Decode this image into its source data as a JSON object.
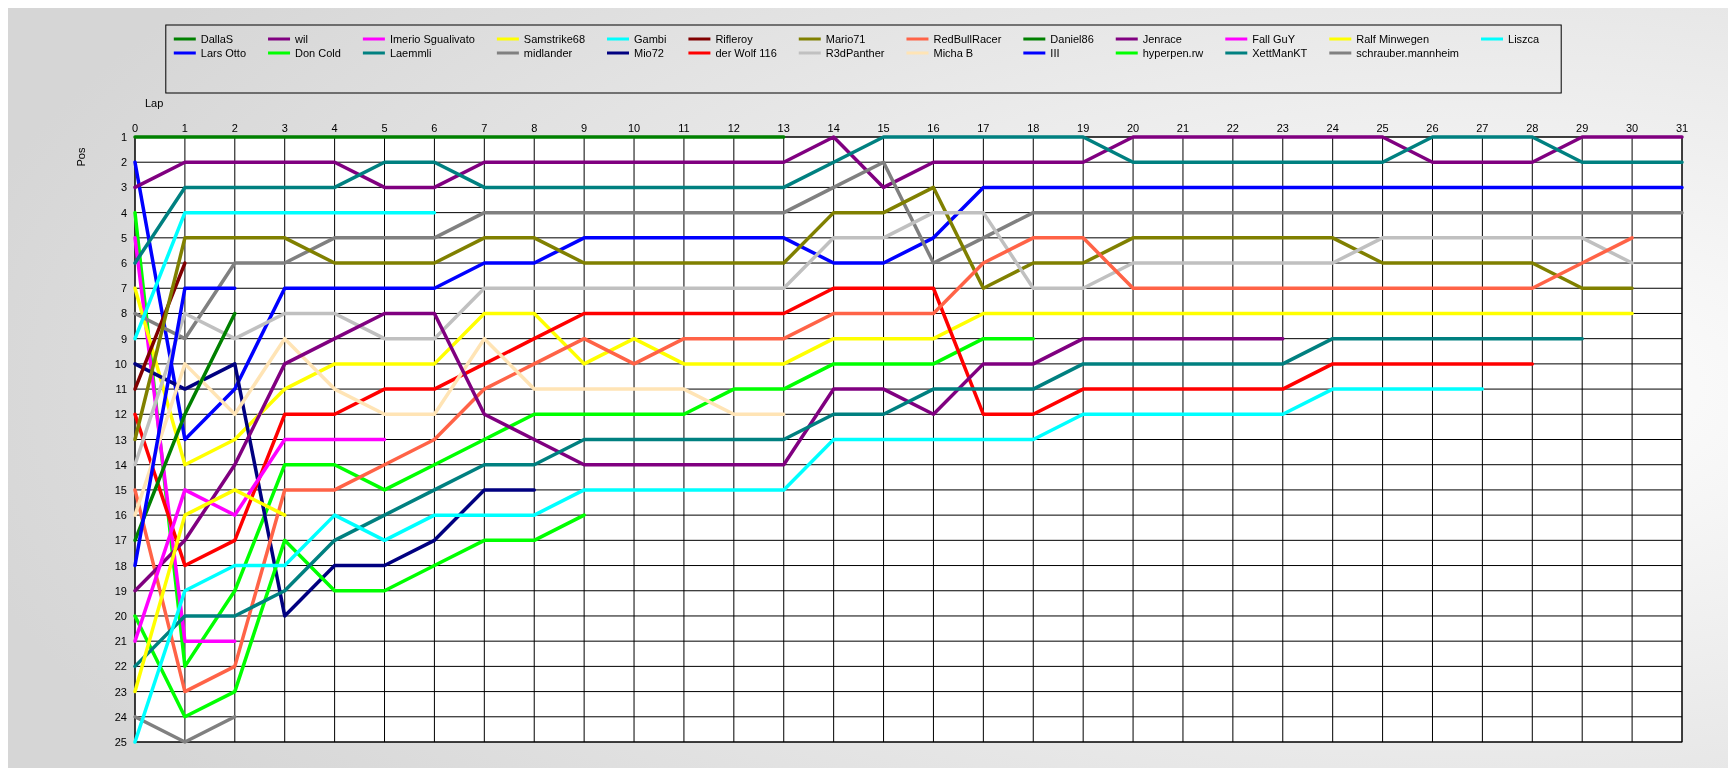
{
  "chart_data": {
    "type": "line",
    "xlabel": "Lap",
    "ylabel": "Pos",
    "x": [
      0,
      1,
      2,
      3,
      4,
      5,
      6,
      7,
      8,
      9,
      10,
      11,
      12,
      13,
      14,
      15,
      16,
      17,
      18,
      19,
      20,
      21,
      22,
      23,
      24,
      25,
      26,
      27,
      28,
      29,
      30,
      31
    ],
    "xlim": [
      0,
      31
    ],
    "xticks": [
      0,
      1,
      2,
      3,
      4,
      5,
      6,
      7,
      8,
      9,
      10,
      11,
      12,
      13,
      14,
      15,
      16,
      17,
      18,
      19,
      20,
      21,
      22,
      23,
      24,
      25,
      26,
      27,
      28,
      29,
      30,
      31
    ],
    "ylim": [
      25,
      1
    ],
    "yticks": [
      1,
      2,
      3,
      4,
      5,
      6,
      7,
      8,
      9,
      10,
      11,
      12,
      13,
      14,
      15,
      16,
      17,
      18,
      19,
      20,
      21,
      22,
      23,
      24,
      25
    ],
    "grid": true,
    "legend": "top",
    "marker": "none",
    "line_style": "solid",
    "series": [
      {
        "name": "DallaS",
        "color": "#008000",
        "values": [
          1,
          1,
          1,
          1,
          1,
          1,
          1,
          1,
          1,
          1,
          1,
          1,
          1,
          1,
          null,
          null,
          null,
          null,
          null,
          null,
          null,
          null,
          null,
          null,
          null,
          null,
          null,
          null,
          null,
          null,
          null,
          null
        ]
      },
      {
        "name": "Lars Otto",
        "color": "#0000ff",
        "values": [
          2,
          13,
          11,
          7,
          7,
          7,
          7,
          6,
          6,
          5,
          5,
          5,
          5,
          5,
          6,
          6,
          5,
          3,
          3,
          3,
          3,
          3,
          3,
          3,
          3,
          3,
          3,
          3,
          3,
          3,
          3,
          3
        ]
      },
      {
        "name": "wil",
        "color": "#800080",
        "values": [
          3,
          2,
          2,
          2,
          2,
          3,
          3,
          2,
          2,
          2,
          2,
          2,
          2,
          2,
          1,
          3,
          2,
          2,
          2,
          2,
          1,
          1,
          1,
          1,
          1,
          1,
          2,
          2,
          2,
          1,
          1,
          1
        ]
      },
      {
        "name": "Don Cold",
        "color": "#00ff00",
        "values": [
          4,
          22,
          19,
          14,
          14,
          15,
          14,
          13,
          12,
          12,
          12,
          12,
          11,
          11,
          10,
          10,
          10,
          9,
          9,
          null,
          null,
          null,
          null,
          null,
          null,
          null,
          null,
          null,
          null,
          null,
          null,
          null
        ]
      },
      {
        "name": "Imerio Sgualivato",
        "color": "#ff00ff",
        "values": [
          5,
          21,
          21,
          null,
          null,
          null,
          null,
          null,
          null,
          null,
          null,
          null,
          null,
          null,
          null,
          null,
          null,
          null,
          null,
          null,
          null,
          null,
          null,
          null,
          null,
          null,
          null,
          null,
          null,
          null,
          null,
          null
        ]
      },
      {
        "name": "Laemmli",
        "color": "#008080",
        "values": [
          6,
          3,
          3,
          3,
          3,
          2,
          2,
          3,
          3,
          3,
          3,
          3,
          3,
          3,
          2,
          1,
          1,
          1,
          1,
          1,
          2,
          2,
          2,
          2,
          2,
          2,
          1,
          1,
          1,
          2,
          2,
          2
        ]
      },
      {
        "name": "Samstrike68",
        "color": "#ffff00",
        "values": [
          7,
          14,
          13,
          11,
          10,
          10,
          10,
          8,
          8,
          10,
          9,
          10,
          10,
          10,
          9,
          9,
          9,
          8,
          8,
          8,
          8,
          8,
          8,
          8,
          8,
          8,
          8,
          8,
          8,
          8,
          8,
          null
        ]
      },
      {
        "name": "midlander",
        "color": "#808080",
        "values": [
          8,
          9,
          6,
          6,
          5,
          5,
          5,
          4,
          4,
          4,
          4,
          4,
          4,
          4,
          3,
          2,
          6,
          5,
          4,
          4,
          4,
          4,
          4,
          4,
          4,
          4,
          4,
          4,
          4,
          4,
          4,
          4
        ]
      },
      {
        "name": "Gambi",
        "color": "#00ffff",
        "values": [
          9,
          4,
          4,
          4,
          4,
          4,
          4,
          null,
          null,
          null,
          null,
          null,
          null,
          null,
          null,
          null,
          null,
          null,
          null,
          null,
          null,
          null,
          null,
          null,
          null,
          null,
          null,
          null,
          null,
          null,
          null,
          null
        ]
      },
      {
        "name": "Mio72",
        "color": "#000080",
        "values": [
          10,
          11,
          10,
          20,
          18,
          18,
          17,
          15,
          15,
          null,
          null,
          null,
          null,
          null,
          null,
          null,
          null,
          null,
          null,
          null,
          null,
          null,
          null,
          null,
          null,
          null,
          null,
          null,
          null,
          null,
          null,
          null
        ]
      },
      {
        "name": "Rifleroy",
        "color": "#800000",
        "values": [
          11,
          6,
          null,
          null,
          null,
          null,
          null,
          null,
          null,
          null,
          null,
          null,
          null,
          null,
          null,
          null,
          null,
          null,
          null,
          null,
          null,
          null,
          null,
          null,
          null,
          null,
          null,
          null,
          null,
          null,
          null,
          null
        ]
      },
      {
        "name": "der Wolf 116",
        "color": "#ff0000",
        "values": [
          12,
          18,
          17,
          12,
          12,
          11,
          11,
          10,
          9,
          8,
          8,
          8,
          8,
          8,
          7,
          7,
          7,
          12,
          12,
          11,
          11,
          11,
          11,
          11,
          10,
          10,
          10,
          10,
          10,
          null,
          null,
          null
        ]
      },
      {
        "name": "Mario71",
        "color": "#808000",
        "values": [
          13,
          5,
          5,
          5,
          6,
          6,
          6,
          5,
          5,
          6,
          6,
          6,
          6,
          6,
          4,
          4,
          3,
          7,
          6,
          6,
          5,
          5,
          5,
          5,
          5,
          6,
          6,
          6,
          6,
          7,
          7,
          null
        ]
      },
      {
        "name": "R3dPanther",
        "color": "#c0c0c0",
        "values": [
          14,
          8,
          9,
          8,
          8,
          9,
          9,
          7,
          7,
          7,
          7,
          7,
          7,
          7,
          5,
          5,
          4,
          4,
          7,
          7,
          6,
          6,
          6,
          6,
          6,
          5,
          5,
          5,
          5,
          5,
          6,
          null
        ]
      },
      {
        "name": "RedBullRacer",
        "color": "#ff6347",
        "values": [
          15,
          23,
          22,
          15,
          15,
          14,
          13,
          11,
          10,
          9,
          10,
          9,
          9,
          9,
          8,
          8,
          8,
          6,
          5,
          5,
          7,
          7,
          7,
          7,
          7,
          7,
          7,
          7,
          7,
          6,
          5,
          null
        ]
      },
      {
        "name": "Micha B",
        "color": "#ffe4b5",
        "values": [
          16,
          10,
          12,
          9,
          11,
          12,
          12,
          9,
          11,
          11,
          11,
          11,
          12,
          12,
          null,
          null,
          null,
          null,
          null,
          null,
          null,
          null,
          null,
          null,
          null,
          null,
          null,
          null,
          null,
          null,
          null,
          null
        ]
      },
      {
        "name": "Daniel86",
        "color": "#008000",
        "values": [
          17,
          12,
          8,
          null,
          null,
          null,
          null,
          null,
          null,
          null,
          null,
          null,
          null,
          null,
          null,
          null,
          null,
          null,
          null,
          null,
          null,
          null,
          null,
          null,
          null,
          null,
          null,
          null,
          null,
          null,
          null,
          null
        ]
      },
      {
        "name": "III",
        "color": "#0000ff",
        "values": [
          18,
          7,
          7,
          null,
          null,
          null,
          null,
          null,
          null,
          null,
          null,
          null,
          null,
          null,
          null,
          null,
          null,
          null,
          null,
          null,
          null,
          null,
          null,
          null,
          null,
          null,
          null,
          null,
          null,
          null,
          null,
          null
        ]
      },
      {
        "name": "Jenrace",
        "color": "#800080",
        "values": [
          19,
          17,
          14,
          10,
          9,
          8,
          8,
          12,
          13,
          14,
          14,
          14,
          14,
          14,
          11,
          11,
          12,
          10,
          10,
          9,
          9,
          9,
          9,
          9,
          null,
          null,
          null,
          null,
          null,
          null,
          null,
          null
        ]
      },
      {
        "name": "hyperpen.rw",
        "color": "#00ff00",
        "values": [
          20,
          24,
          23,
          17,
          19,
          19,
          18,
          17,
          17,
          16,
          null,
          null,
          null,
          null,
          null,
          null,
          null,
          null,
          null,
          null,
          null,
          null,
          null,
          null,
          null,
          null,
          null,
          null,
          null,
          null,
          null,
          null
        ]
      },
      {
        "name": "Fall GuY",
        "color": "#ff00ff",
        "values": [
          21,
          15,
          16,
          13,
          13,
          13,
          null,
          null,
          null,
          null,
          null,
          null,
          null,
          null,
          null,
          null,
          null,
          null,
          null,
          null,
          null,
          null,
          null,
          null,
          null,
          null,
          null,
          null,
          null,
          null,
          null,
          null
        ]
      },
      {
        "name": "XettManKT",
        "color": "#008080",
        "values": [
          22,
          20,
          20,
          19,
          17,
          16,
          15,
          14,
          14,
          13,
          13,
          13,
          13,
          13,
          12,
          12,
          11,
          11,
          11,
          10,
          10,
          10,
          10,
          10,
          9,
          9,
          9,
          9,
          9,
          9,
          null,
          null
        ]
      },
      {
        "name": "Ralf Minwegen",
        "color": "#ffff00",
        "values": [
          23,
          16,
          15,
          16,
          null,
          null,
          null,
          null,
          null,
          null,
          null,
          null,
          null,
          null,
          null,
          null,
          null,
          null,
          null,
          null,
          null,
          null,
          null,
          null,
          null,
          null,
          null,
          null,
          null,
          null,
          null,
          null
        ]
      },
      {
        "name": "schrauber.mannheim",
        "color": "#808080",
        "values": [
          24,
          25,
          24,
          null,
          null,
          null,
          null,
          null,
          null,
          null,
          null,
          null,
          null,
          null,
          null,
          null,
          null,
          null,
          null,
          null,
          null,
          null,
          null,
          null,
          null,
          null,
          null,
          null,
          null,
          null,
          null,
          null
        ]
      },
      {
        "name": "Liszca",
        "color": "#00ffff",
        "values": [
          25,
          19,
          18,
          18,
          16,
          17,
          16,
          16,
          16,
          15,
          15,
          15,
          15,
          15,
          13,
          13,
          13,
          13,
          13,
          12,
          12,
          12,
          12,
          12,
          11,
          11,
          11,
          11,
          null,
          null,
          null,
          null
        ]
      }
    ]
  }
}
